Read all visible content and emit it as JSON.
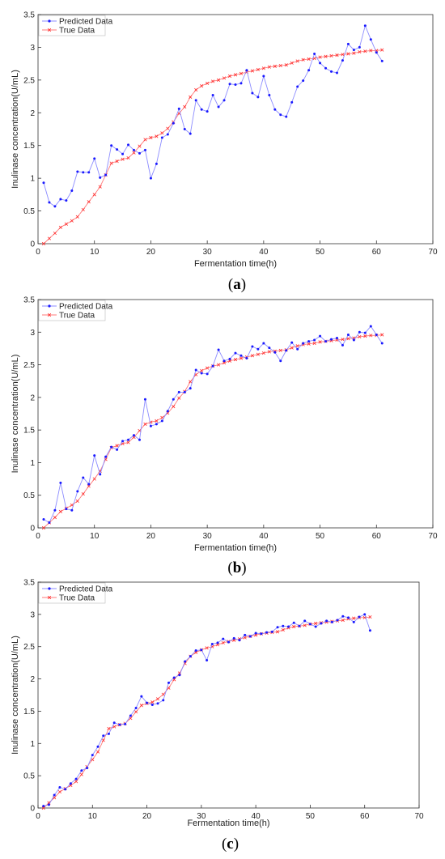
{
  "colors": {
    "predicted": "#1a1aff",
    "predicted_line": "#8c8cff",
    "true": "#ff2b2b",
    "true_line": "#ff7a7a",
    "axis": "#333333",
    "grid": "#e8e8e8"
  },
  "chart_data": [
    {
      "type": "line",
      "panel_label": "a",
      "xlabel": "Fermentation time(h)",
      "ylabel": "Inulinase concentration(U/mL)",
      "xlim": [
        0,
        70
      ],
      "ylim": [
        0,
        3.5
      ],
      "xticks": [
        "0",
        "10",
        "20",
        "30",
        "40",
        "50",
        "60",
        "70"
      ],
      "yticks": [
        "0",
        "0.5",
        "1",
        "1.5",
        "2",
        "2.5",
        "3",
        "3.5"
      ],
      "legend_position": "top-left",
      "grid": false,
      "x": [
        1,
        2,
        3,
        4,
        5,
        6,
        7,
        8,
        9,
        10,
        11,
        12,
        13,
        14,
        15,
        16,
        17,
        18,
        19,
        20,
        21,
        22,
        23,
        24,
        25,
        26,
        27,
        28,
        29,
        30,
        31,
        32,
        33,
        34,
        35,
        36,
        37,
        38,
        39,
        40,
        41,
        42,
        43,
        44,
        45,
        46,
        47,
        48,
        49,
        50,
        51,
        52,
        53,
        54,
        55,
        56,
        57,
        58,
        59,
        60,
        61
      ],
      "series": [
        {
          "name": "Predicted Data",
          "values": [
            0.93,
            0.63,
            0.57,
            0.68,
            0.66,
            0.81,
            1.1,
            1.09,
            1.09,
            1.3,
            1.01,
            1.05,
            1.5,
            1.44,
            1.37,
            1.51,
            1.43,
            1.38,
            1.43,
            1.0,
            1.22,
            1.62,
            1.67,
            1.84,
            2.06,
            1.75,
            1.68,
            2.19,
            2.05,
            2.02,
            2.27,
            2.09,
            2.19,
            2.44,
            2.43,
            2.45,
            2.65,
            2.3,
            2.24,
            2.56,
            2.27,
            2.05,
            1.97,
            1.94,
            2.16,
            2.4,
            2.49,
            2.65,
            2.9,
            2.76,
            2.68,
            2.63,
            2.61,
            2.8,
            3.05,
            2.96,
            3.0,
            3.33,
            3.12,
            2.92,
            2.79
          ]
        },
        {
          "name": "True Data",
          "values": [
            0.0,
            0.08,
            0.16,
            0.25,
            0.3,
            0.35,
            0.41,
            0.52,
            0.64,
            0.75,
            0.87,
            1.05,
            1.23,
            1.26,
            1.29,
            1.31,
            1.39,
            1.49,
            1.59,
            1.62,
            1.64,
            1.69,
            1.76,
            1.86,
            1.99,
            2.09,
            2.24,
            2.35,
            2.41,
            2.45,
            2.48,
            2.5,
            2.53,
            2.56,
            2.58,
            2.6,
            2.62,
            2.64,
            2.66,
            2.68,
            2.7,
            2.71,
            2.72,
            2.73,
            2.76,
            2.79,
            2.81,
            2.82,
            2.83,
            2.85,
            2.86,
            2.87,
            2.88,
            2.89,
            2.9,
            2.91,
            2.93,
            2.94,
            2.95,
            2.95,
            2.96
          ]
        }
      ]
    },
    {
      "type": "line",
      "panel_label": "b",
      "xlabel": "Fermentation time(h)",
      "ylabel": "Inulinase concentration(U/mL)",
      "xlim": [
        0,
        70
      ],
      "ylim": [
        0,
        3.5
      ],
      "xticks": [
        "0",
        "10",
        "20",
        "30",
        "40",
        "50",
        "60",
        "70"
      ],
      "yticks": [
        "0",
        "0.5",
        "1",
        "1.5",
        "2",
        "2.5",
        "3",
        "3.5"
      ],
      "legend_position": "top-left",
      "grid": false,
      "x": [
        1,
        2,
        3,
        4,
        5,
        6,
        7,
        8,
        9,
        10,
        11,
        12,
        13,
        14,
        15,
        16,
        17,
        18,
        19,
        20,
        21,
        22,
        23,
        24,
        25,
        26,
        27,
        28,
        29,
        30,
        31,
        32,
        33,
        34,
        35,
        36,
        37,
        38,
        39,
        40,
        41,
        42,
        43,
        44,
        45,
        46,
        47,
        48,
        49,
        50,
        51,
        52,
        53,
        54,
        55,
        56,
        57,
        58,
        59,
        60,
        61
      ],
      "series": [
        {
          "name": "Predicted Data",
          "values": [
            0.13,
            0.08,
            0.27,
            0.69,
            0.29,
            0.27,
            0.56,
            0.77,
            0.67,
            1.11,
            0.82,
            1.09,
            1.24,
            1.2,
            1.33,
            1.35,
            1.42,
            1.35,
            1.97,
            1.56,
            1.59,
            1.64,
            1.79,
            1.97,
            2.08,
            2.08,
            2.14,
            2.42,
            2.37,
            2.36,
            2.48,
            2.73,
            2.56,
            2.59,
            2.68,
            2.64,
            2.6,
            2.78,
            2.74,
            2.83,
            2.76,
            2.69,
            2.56,
            2.72,
            2.84,
            2.74,
            2.83,
            2.86,
            2.88,
            2.94,
            2.86,
            2.89,
            2.91,
            2.8,
            2.96,
            2.88,
            3.0,
            2.99,
            3.09,
            2.96,
            2.83
          ]
        },
        {
          "name": "True Data",
          "values": [
            0.0,
            0.08,
            0.16,
            0.25,
            0.3,
            0.35,
            0.41,
            0.52,
            0.64,
            0.75,
            0.87,
            1.05,
            1.23,
            1.26,
            1.29,
            1.31,
            1.39,
            1.49,
            1.59,
            1.62,
            1.64,
            1.69,
            1.76,
            1.86,
            1.99,
            2.09,
            2.24,
            2.35,
            2.41,
            2.45,
            2.48,
            2.5,
            2.53,
            2.56,
            2.58,
            2.6,
            2.62,
            2.64,
            2.66,
            2.68,
            2.7,
            2.71,
            2.72,
            2.73,
            2.76,
            2.79,
            2.81,
            2.82,
            2.83,
            2.85,
            2.86,
            2.87,
            2.88,
            2.89,
            2.9,
            2.91,
            2.93,
            2.94,
            2.95,
            2.95,
            2.96
          ]
        }
      ]
    },
    {
      "type": "line",
      "panel_label": "c",
      "xlabel": "Fermentation time(h)",
      "ylabel": "Inulinase concentration(U/mL)",
      "xlim": [
        0,
        70
      ],
      "ylim": [
        0,
        3.5
      ],
      "xticks": [
        "0",
        "10",
        "20",
        "30",
        "40",
        "50",
        "60",
        "70"
      ],
      "yticks": [
        "0",
        "0.5",
        "1",
        "1.5",
        "2",
        "2.5",
        "3",
        "3.5"
      ],
      "legend_position": "top-left",
      "grid": false,
      "x": [
        1,
        2,
        3,
        4,
        5,
        6,
        7,
        8,
        9,
        10,
        11,
        12,
        13,
        14,
        15,
        16,
        17,
        18,
        19,
        20,
        21,
        22,
        23,
        24,
        25,
        26,
        27,
        28,
        29,
        30,
        31,
        32,
        33,
        34,
        35,
        36,
        37,
        38,
        39,
        40,
        41,
        42,
        43,
        44,
        45,
        46,
        47,
        48,
        49,
        50,
        51,
        52,
        53,
        54,
        55,
        56,
        57,
        58,
        59,
        60,
        61
      ],
      "series": [
        {
          "name": "Predicted Data",
          "values": [
            0.03,
            0.05,
            0.2,
            0.32,
            0.29,
            0.38,
            0.45,
            0.58,
            0.62,
            0.82,
            0.95,
            1.12,
            1.15,
            1.32,
            1.29,
            1.3,
            1.43,
            1.55,
            1.73,
            1.63,
            1.6,
            1.62,
            1.67,
            1.94,
            2.02,
            2.06,
            2.27,
            2.35,
            2.44,
            2.45,
            2.29,
            2.54,
            2.56,
            2.62,
            2.57,
            2.63,
            2.6,
            2.68,
            2.66,
            2.71,
            2.7,
            2.72,
            2.73,
            2.8,
            2.82,
            2.81,
            2.87,
            2.82,
            2.9,
            2.85,
            2.81,
            2.86,
            2.9,
            2.88,
            2.91,
            2.97,
            2.95,
            2.88,
            2.96,
            3.0,
            2.75
          ]
        },
        {
          "name": "True Data",
          "values": [
            0.0,
            0.08,
            0.16,
            0.25,
            0.3,
            0.35,
            0.41,
            0.52,
            0.64,
            0.75,
            0.87,
            1.05,
            1.23,
            1.26,
            1.29,
            1.31,
            1.39,
            1.49,
            1.59,
            1.62,
            1.64,
            1.69,
            1.76,
            1.86,
            1.99,
            2.09,
            2.24,
            2.35,
            2.41,
            2.45,
            2.48,
            2.5,
            2.53,
            2.56,
            2.58,
            2.6,
            2.62,
            2.64,
            2.66,
            2.68,
            2.7,
            2.71,
            2.72,
            2.73,
            2.76,
            2.79,
            2.81,
            2.82,
            2.83,
            2.85,
            2.86,
            2.87,
            2.88,
            2.89,
            2.9,
            2.91,
            2.93,
            2.94,
            2.95,
            2.95,
            2.96
          ]
        }
      ]
    }
  ]
}
